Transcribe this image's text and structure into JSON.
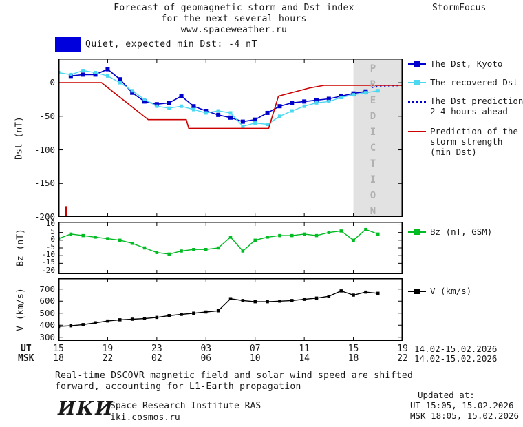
{
  "header": {
    "title_line1": "Forecast of geomagnetic storm and Dst index",
    "title_line2": "for the next several hours",
    "title_line3": "www.spaceweather.ru",
    "brand": "StormFocus"
  },
  "banner": {
    "swatch_color": "#0000dd",
    "label": "Quiet, expected min Dst: -4 nT"
  },
  "prediction_label": "PREDICTION",
  "chart_data": [
    {
      "type": "line",
      "mount": "panel-dst",
      "ylabel": "Dst (nT)",
      "xlim": [
        15,
        43
      ],
      "ylim": [
        -200,
        36
      ],
      "yticks": [
        0,
        -50,
        -100,
        -150,
        -200
      ],
      "xticks": [
        15,
        19,
        23,
        27,
        31,
        35,
        39,
        43
      ],
      "band": {
        "start": 39,
        "end": 43,
        "color": "#e2e2e2"
      },
      "series": [
        {
          "name": "The Dst, Kyoto",
          "color": "#0000cc",
          "marker": true,
          "marker_size": 6,
          "width": 1.6,
          "x": [
            16,
            17,
            18,
            19,
            20,
            21,
            22,
            23,
            24,
            25,
            26,
            27,
            28,
            29,
            30,
            31,
            32,
            33,
            34,
            35,
            36,
            37,
            38,
            39,
            40
          ],
          "y": [
            10,
            12,
            12,
            20,
            5,
            -15,
            -28,
            -32,
            -30,
            -20,
            -35,
            -42,
            -48,
            -52,
            -58,
            -55,
            -45,
            -35,
            -30,
            -28,
            -26,
            -24,
            -20,
            -16,
            -13
          ]
        },
        {
          "name": "The recovered Dst",
          "color": "#4cd8f0",
          "marker": true,
          "marker_size": 5,
          "width": 1.4,
          "x": [
            15,
            16,
            17,
            18,
            19,
            20,
            21,
            22,
            23,
            24,
            25,
            26,
            27,
            28,
            29,
            30,
            31,
            32,
            33,
            34,
            35,
            36,
            37,
            38,
            39,
            40,
            41
          ],
          "y": [
            15,
            12,
            18,
            15,
            10,
            0,
            -12,
            -25,
            -35,
            -38,
            -35,
            -40,
            -45,
            -42,
            -45,
            -65,
            -60,
            -62,
            -50,
            -42,
            -35,
            -30,
            -28,
            -22,
            -18,
            -15,
            -12
          ]
        },
        {
          "name": "The Dst prediction 2-4 hours ahead",
          "color": "#0000cc",
          "dash": "2,4",
          "width": 2,
          "x": [
            40.5,
            41.5,
            43
          ],
          "y": [
            -7,
            -5,
            -4
          ]
        },
        {
          "name": "Prediction of the storm strength (min Dst)",
          "color": "#cc0000",
          "width": 1.6,
          "x": [
            15,
            18.5,
            22.3,
            25.4,
            25.6,
            32.1,
            32.9,
            35.4,
            36.6,
            43
          ],
          "y": [
            0,
            0,
            -55,
            -55,
            -68,
            -68,
            -20,
            -8,
            -4,
            -4
          ]
        },
        {
          "name": "storm onset marker",
          "color": "#cc0000",
          "width": 3,
          "x": [
            15.6,
            15.6
          ],
          "y": [
            -184,
            -200
          ]
        }
      ]
    },
    {
      "type": "line",
      "mount": "panel-bz",
      "ylabel": "Bz (nT)",
      "xlim": [
        15,
        43
      ],
      "ylim": [
        -22,
        12
      ],
      "yticks": [
        10,
        5,
        0,
        -5,
        -10,
        -15,
        -20
      ],
      "xticks": [
        15,
        19,
        23,
        27,
        31,
        35,
        39,
        43
      ],
      "series": [
        {
          "name": "Bz (nT, GSM)",
          "color": "#00bb22",
          "marker": true,
          "marker_size": 4.5,
          "width": 1.4,
          "x": [
            15,
            16,
            17,
            18,
            19,
            20,
            21,
            22,
            23,
            24,
            25,
            26,
            27,
            28,
            29,
            30,
            31,
            32,
            33,
            34,
            35,
            36,
            37,
            38,
            39,
            40,
            41
          ],
          "y": [
            1,
            4,
            3,
            2,
            1,
            0,
            -2,
            -5,
            -8,
            -9,
            -7,
            -6,
            -6,
            -5,
            2,
            -7,
            0,
            2,
            3,
            3,
            4,
            3,
            5,
            6,
            0,
            7,
            4
          ]
        }
      ]
    },
    {
      "type": "line",
      "mount": "panel-v",
      "ylabel": "V (km/s)",
      "xlim": [
        15,
        43
      ],
      "ylim": [
        270,
        790
      ],
      "yticks": [
        700,
        600,
        500,
        400,
        300
      ],
      "xticks": [
        15,
        19,
        23,
        27,
        31,
        35,
        39,
        43
      ],
      "series": [
        {
          "name": "V (km/s)",
          "color": "#000000",
          "marker": true,
          "marker_size": 4.5,
          "width": 1.4,
          "x": [
            15,
            16,
            17,
            18,
            19,
            20,
            21,
            22,
            23,
            24,
            25,
            26,
            27,
            28,
            29,
            30,
            31,
            32,
            33,
            34,
            35,
            36,
            37,
            38,
            39,
            40,
            41
          ],
          "y": [
            390,
            395,
            405,
            420,
            435,
            445,
            450,
            455,
            465,
            480,
            490,
            500,
            510,
            520,
            620,
            605,
            595,
            595,
            600,
            605,
            615,
            625,
            640,
            685,
            650,
            675,
            665
          ]
        }
      ]
    }
  ],
  "legend_dst": {
    "item1": {
      "label": "The Dst, Kyoto",
      "color": "#0000cc"
    },
    "item2": {
      "label": "The recovered Dst",
      "color": "#4cd8f0"
    },
    "item3": {
      "label": "The Dst prediction",
      "label2": "2-4 hours ahead",
      "color": "#0000cc"
    },
    "item4": {
      "label": "Prediction of the",
      "label2": "storm strength",
      "label3": "(min Dst)",
      "color": "#cc0000"
    }
  },
  "legend_bz": {
    "label": "Bz (nT, GSM)",
    "color": "#00bb22"
  },
  "legend_v": {
    "label": "V (km/s)",
    "color": "#000000"
  },
  "xaxis": {
    "ut_label": "UT",
    "msk_label": "MSK",
    "tick_hours": [
      15,
      19,
      23,
      27,
      31,
      35,
      39,
      43
    ],
    "ut_ticks": [
      "15",
      "19",
      "23",
      "03",
      "07",
      "11",
      "15",
      "19"
    ],
    "msk_ticks": [
      "18",
      "22",
      "02",
      "06",
      "10",
      "14",
      "18",
      "22"
    ],
    "ut_date_range": "14.02-15.02.2026",
    "msk_date_range": "14.02-15.02.2026"
  },
  "footer": {
    "note_line1": "Real-time DSCOVR magnetic field and solar wind speed are shifted",
    "note_line2": "forward, accounting for L1-Earth propagation",
    "logo": "ИКИ",
    "org_name": "Space Research Institute RAS",
    "org_site": "iki.cosmos.ru",
    "updated_label": "Updated at:",
    "updated_ut": "UT  15:05, 15.02.2026",
    "updated_msk": "MSK 18:05, 15.02.2026"
  }
}
